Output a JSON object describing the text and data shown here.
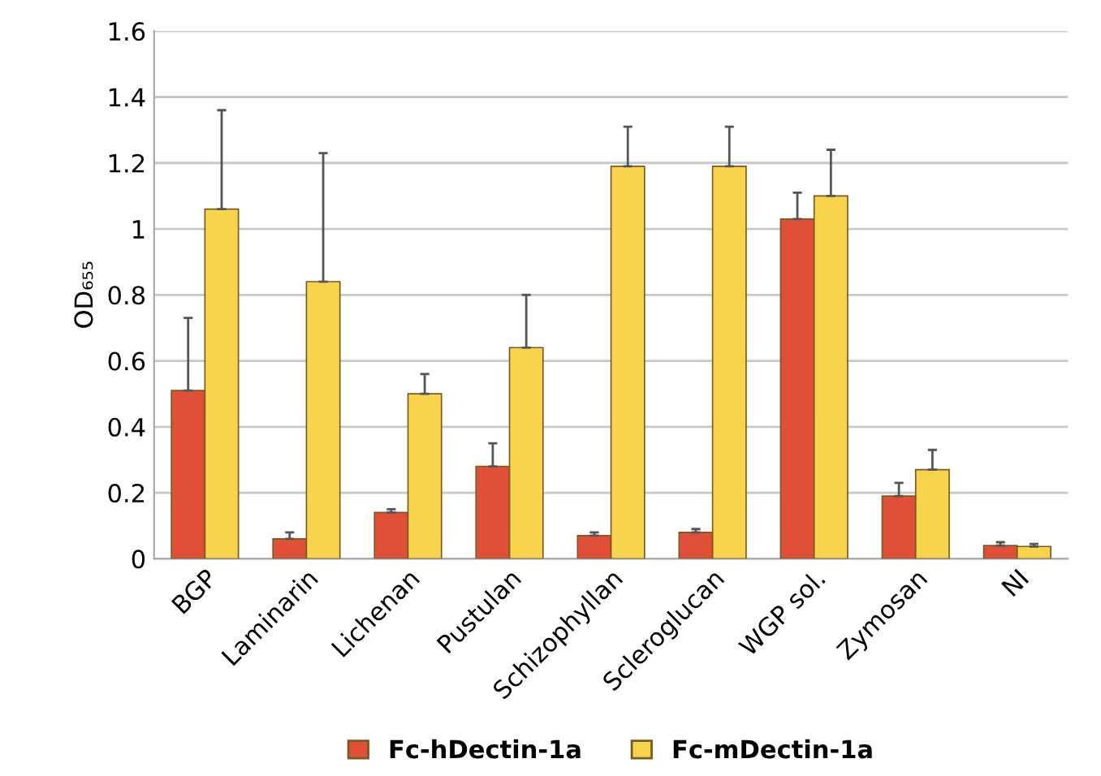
{
  "chart_data": {
    "type": "bar",
    "ylabel": "OD₆₅₅",
    "categories": [
      "BGP",
      "Laminarin",
      "Lichenan",
      "Pustulan",
      "Schizophyllan",
      "Scleroglucan",
      "WGP sol.",
      "Zymosan",
      "NI"
    ],
    "series": [
      {
        "name": "Fc-hDectin-1a",
        "color": "#e05038",
        "values": [
          0.51,
          0.06,
          0.14,
          0.28,
          0.07,
          0.08,
          1.03,
          0.19,
          0.04
        ],
        "errors": [
          [
            0.51,
            0.73
          ],
          [
            0.06,
            0.08
          ],
          [
            0.14,
            0.15
          ],
          [
            0.28,
            0.35
          ],
          [
            0.07,
            0.08
          ],
          [
            0.08,
            0.09
          ],
          [
            1.03,
            1.11
          ],
          [
            0.19,
            0.23
          ],
          [
            0.04,
            0.05
          ]
        ]
      },
      {
        "name": "Fc-mDectin-1a",
        "color": "#f7d44c",
        "values": [
          1.06,
          0.84,
          0.5,
          0.64,
          1.19,
          1.19,
          1.1,
          0.27,
          0.037
        ],
        "errors": [
          [
            1.06,
            1.36
          ],
          [
            0.84,
            1.23
          ],
          [
            0.5,
            0.56
          ],
          [
            0.64,
            0.8
          ],
          [
            1.19,
            1.31
          ],
          [
            1.19,
            1.31
          ],
          [
            1.1,
            1.24
          ],
          [
            0.27,
            0.33
          ],
          [
            0.037,
            0.045
          ]
        ]
      }
    ],
    "ylim": [
      0,
      1.6
    ],
    "yticks": [
      0,
      0.2,
      0.4,
      0.6,
      0.8,
      1,
      1.2,
      1.4,
      1.6
    ],
    "grid": "y",
    "legend": "bottom"
  }
}
